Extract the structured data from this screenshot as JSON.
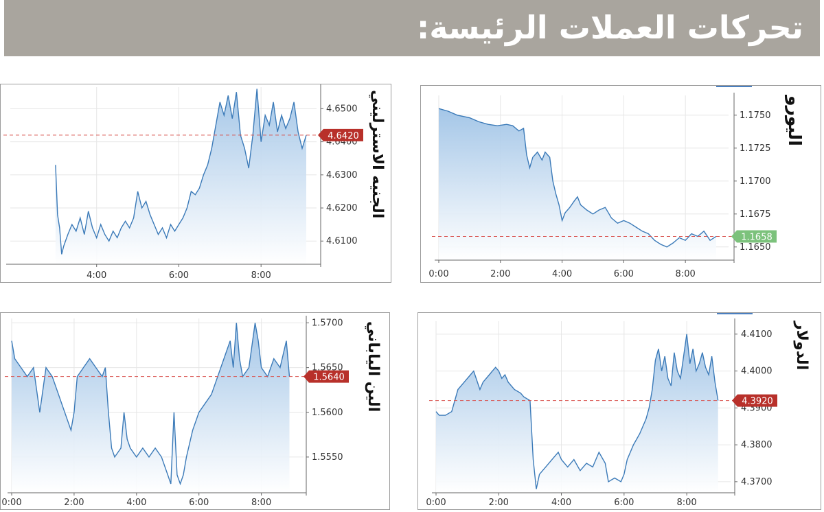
{
  "page": {
    "title": "تحركات العملات الرئيسة:"
  },
  "colors": {
    "header_bg": "#a9a59e",
    "line": "#3b7ab8",
    "area_top": "#9fc3e6",
    "area_bottom": "#ffffff",
    "ref_line": "#d9534f",
    "badge_red": "#b8302a",
    "badge_green": "#7cc27c",
    "grid": "#e6e6e6"
  },
  "chart_data": [
    {
      "id": "euro",
      "label": "اليورو",
      "type": "area",
      "x_ticks": [
        "0:00",
        "2:00",
        "4:00",
        "6:00",
        "8:00"
      ],
      "x_range": [
        0,
        9.4
      ],
      "y_ticks": [
        "1.1650",
        "1.1675",
        "1.1700",
        "1.1725",
        "1.1750"
      ],
      "y_range": [
        1.164,
        1.1765
      ],
      "current": "1.1658",
      "current_value": 1.1658,
      "current_color": "green",
      "points": [
        [
          0,
          1.1755
        ],
        [
          0.3,
          1.1753
        ],
        [
          0.6,
          1.175
        ],
        [
          1.0,
          1.1748
        ],
        [
          1.3,
          1.1745
        ],
        [
          1.6,
          1.1743
        ],
        [
          1.9,
          1.1742
        ],
        [
          2.2,
          1.1743
        ],
        [
          2.4,
          1.1742
        ],
        [
          2.6,
          1.1738
        ],
        [
          2.75,
          1.174
        ],
        [
          2.85,
          1.172
        ],
        [
          2.95,
          1.171
        ],
        [
          3.05,
          1.1718
        ],
        [
          3.2,
          1.1722
        ],
        [
          3.35,
          1.1716
        ],
        [
          3.45,
          1.1722
        ],
        [
          3.6,
          1.1718
        ],
        [
          3.7,
          1.17
        ],
        [
          3.8,
          1.169
        ],
        [
          3.9,
          1.1682
        ],
        [
          4.0,
          1.167
        ],
        [
          4.1,
          1.1676
        ],
        [
          4.25,
          1.168
        ],
        [
          4.4,
          1.1685
        ],
        [
          4.5,
          1.1688
        ],
        [
          4.6,
          1.1682
        ],
        [
          4.8,
          1.1678
        ],
        [
          5.0,
          1.1675
        ],
        [
          5.2,
          1.1678
        ],
        [
          5.4,
          1.168
        ],
        [
          5.6,
          1.1672
        ],
        [
          5.8,
          1.1668
        ],
        [
          6.0,
          1.167
        ],
        [
          6.2,
          1.1668
        ],
        [
          6.4,
          1.1665
        ],
        [
          6.6,
          1.1662
        ],
        [
          6.8,
          1.166
        ],
        [
          7.0,
          1.1655
        ],
        [
          7.2,
          1.1652
        ],
        [
          7.4,
          1.165
        ],
        [
          7.6,
          1.1653
        ],
        [
          7.8,
          1.1657
        ],
        [
          8.0,
          1.1655
        ],
        [
          8.2,
          1.166
        ],
        [
          8.4,
          1.1658
        ],
        [
          8.6,
          1.1662
        ],
        [
          8.8,
          1.1655
        ],
        [
          9.0,
          1.1658
        ]
      ]
    },
    {
      "id": "gbp",
      "label": "الجنيه الاسترليني",
      "type": "area",
      "x_ticks": [
        "4:00",
        "6:00",
        "8:00"
      ],
      "x_tick_values": [
        4,
        6,
        8
      ],
      "x_range": [
        1.9,
        9.35
      ],
      "y_ticks": [
        "4.6100",
        "4.6200",
        "4.6300",
        "4.6400",
        "4.6500"
      ],
      "y_range": [
        4.603,
        4.6565
      ],
      "current": "4.6420",
      "current_value": 4.642,
      "current_color": "red",
      "points": [
        [
          3.0,
          4.633
        ],
        [
          3.05,
          4.618
        ],
        [
          3.1,
          4.614
        ],
        [
          3.15,
          4.606
        ],
        [
          3.2,
          4.6085
        ],
        [
          3.3,
          4.612
        ],
        [
          3.4,
          4.615
        ],
        [
          3.5,
          4.613
        ],
        [
          3.6,
          4.617
        ],
        [
          3.7,
          4.612
        ],
        [
          3.8,
          4.619
        ],
        [
          3.9,
          4.614
        ],
        [
          4.0,
          4.611
        ],
        [
          4.1,
          4.615
        ],
        [
          4.2,
          4.612
        ],
        [
          4.3,
          4.61
        ],
        [
          4.4,
          4.613
        ],
        [
          4.5,
          4.611
        ],
        [
          4.6,
          4.614
        ],
        [
          4.7,
          4.616
        ],
        [
          4.8,
          4.614
        ],
        [
          4.9,
          4.617
        ],
        [
          5.0,
          4.625
        ],
        [
          5.1,
          4.62
        ],
        [
          5.2,
          4.622
        ],
        [
          5.3,
          4.618
        ],
        [
          5.4,
          4.615
        ],
        [
          5.5,
          4.612
        ],
        [
          5.6,
          4.614
        ],
        [
          5.7,
          4.611
        ],
        [
          5.8,
          4.615
        ],
        [
          5.9,
          4.613
        ],
        [
          6.0,
          4.615
        ],
        [
          6.1,
          4.617
        ],
        [
          6.2,
          4.62
        ],
        [
          6.3,
          4.625
        ],
        [
          6.4,
          4.624
        ],
        [
          6.5,
          4.626
        ],
        [
          6.6,
          4.63
        ],
        [
          6.7,
          4.633
        ],
        [
          6.8,
          4.638
        ],
        [
          6.9,
          4.645
        ],
        [
          7.0,
          4.652
        ],
        [
          7.1,
          4.648
        ],
        [
          7.2,
          4.654
        ],
        [
          7.3,
          4.647
        ],
        [
          7.4,
          4.655
        ],
        [
          7.5,
          4.642
        ],
        [
          7.6,
          4.638
        ],
        [
          7.7,
          4.632
        ],
        [
          7.8,
          4.642
        ],
        [
          7.9,
          4.656
        ],
        [
          8.0,
          4.64
        ],
        [
          8.1,
          4.648
        ],
        [
          8.2,
          4.645
        ],
        [
          8.3,
          4.652
        ],
        [
          8.4,
          4.643
        ],
        [
          8.5,
          4.648
        ],
        [
          8.6,
          4.644
        ],
        [
          8.7,
          4.647
        ],
        [
          8.8,
          4.652
        ],
        [
          8.9,
          4.643
        ],
        [
          9.0,
          4.638
        ],
        [
          9.1,
          4.642
        ]
      ]
    },
    {
      "id": "usd",
      "label": "الدولار",
      "type": "area",
      "x_ticks": [
        "0:00",
        "2:00",
        "4:00",
        "6:00",
        "8:00"
      ],
      "x_range": [
        0,
        9.4
      ],
      "y_ticks": [
        "4.3700",
        "4.3800",
        "4.3900",
        "4.4000",
        "4.4100"
      ],
      "y_range": [
        4.367,
        4.4135
      ],
      "current": "4.3920",
      "current_value": 4.392,
      "current_color": "red",
      "points": [
        [
          0,
          4.389
        ],
        [
          0.1,
          4.388
        ],
        [
          0.3,
          4.388
        ],
        [
          0.5,
          4.389
        ],
        [
          0.7,
          4.395
        ],
        [
          0.9,
          4.397
        ],
        [
          1.1,
          4.399
        ],
        [
          1.2,
          4.4
        ],
        [
          1.4,
          4.395
        ],
        [
          1.5,
          4.397
        ],
        [
          1.7,
          4.399
        ],
        [
          1.8,
          4.4
        ],
        [
          1.9,
          4.401
        ],
        [
          2.0,
          4.4
        ],
        [
          2.1,
          4.398
        ],
        [
          2.2,
          4.399
        ],
        [
          2.3,
          4.397
        ],
        [
          2.5,
          4.395
        ],
        [
          2.7,
          4.394
        ],
        [
          2.8,
          4.393
        ],
        [
          3.0,
          4.392
        ],
        [
          3.1,
          4.376
        ],
        [
          3.2,
          4.368
        ],
        [
          3.3,
          4.372
        ],
        [
          3.5,
          4.374
        ],
        [
          3.7,
          4.376
        ],
        [
          3.9,
          4.378
        ],
        [
          4.0,
          4.376
        ],
        [
          4.2,
          4.374
        ],
        [
          4.4,
          4.376
        ],
        [
          4.6,
          4.373
        ],
        [
          4.8,
          4.375
        ],
        [
          5.0,
          4.374
        ],
        [
          5.2,
          4.378
        ],
        [
          5.4,
          4.375
        ],
        [
          5.5,
          4.37
        ],
        [
          5.7,
          4.371
        ],
        [
          5.9,
          4.37
        ],
        [
          6.0,
          4.372
        ],
        [
          6.1,
          4.376
        ],
        [
          6.3,
          4.38
        ],
        [
          6.5,
          4.383
        ],
        [
          6.7,
          4.387
        ],
        [
          6.8,
          4.39
        ],
        [
          6.9,
          4.395
        ],
        [
          7.0,
          4.403
        ],
        [
          7.1,
          4.406
        ],
        [
          7.2,
          4.4
        ],
        [
          7.3,
          4.404
        ],
        [
          7.4,
          4.398
        ],
        [
          7.5,
          4.396
        ],
        [
          7.6,
          4.405
        ],
        [
          7.7,
          4.4
        ],
        [
          7.8,
          4.398
        ],
        [
          8.0,
          4.41
        ],
        [
          8.1,
          4.402
        ],
        [
          8.2,
          4.406
        ],
        [
          8.3,
          4.4
        ],
        [
          8.4,
          4.402
        ],
        [
          8.5,
          4.405
        ],
        [
          8.6,
          4.401
        ],
        [
          8.7,
          4.399
        ],
        [
          8.8,
          4.404
        ],
        [
          8.9,
          4.397
        ],
        [
          9.0,
          4.392
        ]
      ]
    },
    {
      "id": "jpy",
      "label": "الين الياباني",
      "type": "area",
      "x_ticks": [
        "0:00",
        "2:00",
        "4:00",
        "6:00",
        "8:00"
      ],
      "x_range": [
        0,
        9.35
      ],
      "y_ticks": [
        "1.5550",
        "1.5600",
        "1.5650",
        "1.5700"
      ],
      "y_range": [
        1.551,
        1.5705
      ],
      "current": "1.5640",
      "current_value": 1.564,
      "current_color": "red",
      "points": [
        [
          0,
          1.568
        ],
        [
          0.1,
          1.566
        ],
        [
          0.3,
          1.565
        ],
        [
          0.5,
          1.564
        ],
        [
          0.7,
          1.565
        ],
        [
          0.9,
          1.56
        ],
        [
          1.1,
          1.565
        ],
        [
          1.3,
          1.564
        ],
        [
          1.5,
          1.562
        ],
        [
          1.7,
          1.56
        ],
        [
          1.9,
          1.558
        ],
        [
          2.0,
          1.56
        ],
        [
          2.1,
          1.564
        ],
        [
          2.3,
          1.565
        ],
        [
          2.5,
          1.566
        ],
        [
          2.7,
          1.565
        ],
        [
          2.9,
          1.564
        ],
        [
          3.0,
          1.565
        ],
        [
          3.1,
          1.56
        ],
        [
          3.2,
          1.556
        ],
        [
          3.3,
          1.555
        ],
        [
          3.5,
          1.556
        ],
        [
          3.6,
          1.56
        ],
        [
          3.7,
          1.557
        ],
        [
          3.8,
          1.556
        ],
        [
          4.0,
          1.555
        ],
        [
          4.2,
          1.556
        ],
        [
          4.4,
          1.555
        ],
        [
          4.6,
          1.556
        ],
        [
          4.8,
          1.555
        ],
        [
          5.0,
          1.553
        ],
        [
          5.1,
          1.552
        ],
        [
          5.2,
          1.56
        ],
        [
          5.3,
          1.553
        ],
        [
          5.4,
          1.552
        ],
        [
          5.5,
          1.553
        ],
        [
          5.6,
          1.555
        ],
        [
          5.8,
          1.558
        ],
        [
          6.0,
          1.56
        ],
        [
          6.2,
          1.561
        ],
        [
          6.4,
          1.562
        ],
        [
          6.6,
          1.564
        ],
        [
          6.8,
          1.566
        ],
        [
          7.0,
          1.568
        ],
        [
          7.1,
          1.565
        ],
        [
          7.2,
          1.57
        ],
        [
          7.3,
          1.566
        ],
        [
          7.4,
          1.564
        ],
        [
          7.6,
          1.565
        ],
        [
          7.8,
          1.57
        ],
        [
          7.9,
          1.568
        ],
        [
          8.0,
          1.565
        ],
        [
          8.2,
          1.564
        ],
        [
          8.4,
          1.566
        ],
        [
          8.6,
          1.565
        ],
        [
          8.8,
          1.568
        ],
        [
          8.9,
          1.564
        ]
      ]
    }
  ]
}
